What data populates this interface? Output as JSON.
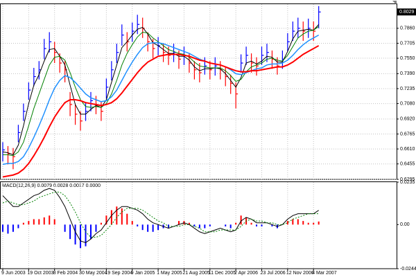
{
  "chart_data": [
    {
      "type": "ohlc",
      "categories": [
        "9 Jun 2003",
        null,
        null,
        null,
        null,
        "19 Oct 2003",
        null,
        null,
        null,
        null,
        "8 Feb 2004",
        null,
        null,
        null,
        null,
        "30 May 2004",
        null,
        null,
        null,
        null,
        "19 Sep 2004",
        null,
        null,
        null,
        null,
        "9 Jan 2005",
        null,
        null,
        null,
        null,
        "1 May 2005",
        null,
        null,
        null,
        null,
        "21 Aug 2005",
        null,
        null,
        null,
        null,
        "11 Dec 2005",
        null,
        null,
        null,
        null,
        "2 Apr 2006",
        null,
        null,
        null,
        null,
        "23 Jul 2006",
        null,
        null,
        null,
        null,
        "12 Nov 2006",
        null,
        null,
        null,
        null,
        "4 Mar 2007",
        null
      ],
      "high": [
        0.668,
        0.664,
        0.662,
        0.686,
        0.708,
        0.73,
        0.745,
        0.752,
        0.775,
        0.782,
        0.772,
        0.76,
        0.752,
        0.72,
        0.707,
        0.7,
        0.709,
        0.72,
        0.716,
        0.71,
        0.734,
        0.752,
        0.77,
        0.79,
        0.782,
        0.792,
        0.8,
        0.797,
        0.782,
        0.775,
        0.777,
        0.77,
        0.767,
        0.77,
        0.763,
        0.767,
        0.76,
        0.752,
        0.75,
        0.756,
        0.752,
        0.756,
        0.752,
        0.746,
        0.738,
        0.73,
        0.759,
        0.767,
        0.76,
        0.756,
        0.767,
        0.77,
        0.763,
        0.756,
        0.763,
        0.781,
        0.793,
        0.797,
        0.793,
        0.796,
        0.793,
        0.809
      ],
      "low": [
        0.648,
        0.645,
        0.64,
        0.668,
        0.69,
        0.712,
        0.726,
        0.733,
        0.754,
        0.761,
        0.75,
        0.74,
        0.73,
        0.695,
        0.686,
        0.68,
        0.69,
        0.7,
        0.697,
        0.69,
        0.713,
        0.732,
        0.75,
        0.768,
        0.762,
        0.772,
        0.78,
        0.776,
        0.762,
        0.755,
        0.758,
        0.751,
        0.748,
        0.751,
        0.744,
        0.748,
        0.74,
        0.733,
        0.73,
        0.738,
        0.733,
        0.737,
        0.733,
        0.726,
        0.718,
        0.703,
        0.74,
        0.748,
        0.74,
        0.737,
        0.748,
        0.751,
        0.744,
        0.738,
        0.744,
        0.762,
        0.773,
        0.776,
        0.773,
        0.776,
        0.773,
        0.786
      ],
      "close": [
        0.66,
        0.656,
        0.653,
        0.678,
        0.7,
        0.722,
        0.736,
        0.743,
        0.765,
        0.772,
        0.761,
        0.75,
        0.743,
        0.707,
        0.697,
        0.69,
        0.7,
        0.711,
        0.707,
        0.7,
        0.725,
        0.743,
        0.761,
        0.779,
        0.772,
        0.783,
        0.79,
        0.786,
        0.772,
        0.765,
        0.768,
        0.761,
        0.758,
        0.761,
        0.754,
        0.758,
        0.75,
        0.743,
        0.74,
        0.747,
        0.743,
        0.747,
        0.743,
        0.736,
        0.729,
        0.718,
        0.75,
        0.758,
        0.75,
        0.747,
        0.758,
        0.761,
        0.754,
        0.747,
        0.754,
        0.772,
        0.783,
        0.786,
        0.783,
        0.786,
        0.783,
        0.8029
      ],
      "up_color": "#0000ff",
      "down_color": "#ff0000",
      "series": [
        {
          "color": "#000000",
          "line_width": 1,
          "values": [
            0.658,
            0.657,
            0.655,
            0.665,
            0.685,
            0.708,
            0.727,
            0.738,
            0.752,
            0.764,
            0.765,
            0.757,
            0.748,
            0.727,
            0.707,
            0.697,
            0.697,
            0.702,
            0.706,
            0.704,
            0.712,
            0.73,
            0.748,
            0.766,
            0.772,
            0.779,
            0.785,
            0.787,
            0.78,
            0.771,
            0.768,
            0.764,
            0.76,
            0.76,
            0.757,
            0.757,
            0.753,
            0.746,
            0.742,
            0.744,
            0.744,
            0.745,
            0.744,
            0.739,
            0.732,
            0.725,
            0.735,
            0.75,
            0.752,
            0.749,
            0.752,
            0.757,
            0.756,
            0.751,
            0.751,
            0.762,
            0.775,
            0.783,
            0.784,
            0.785,
            0.784,
            0.79
          ]
        },
        {
          "color": "#008000",
          "line_width": 1,
          "values": [
            0.655,
            0.655,
            0.654,
            0.658,
            0.668,
            0.685,
            0.703,
            0.718,
            0.733,
            0.748,
            0.756,
            0.757,
            0.753,
            0.74,
            0.725,
            0.712,
            0.705,
            0.704,
            0.705,
            0.704,
            0.708,
            0.718,
            0.732,
            0.748,
            0.76,
            0.769,
            0.777,
            0.782,
            0.781,
            0.776,
            0.772,
            0.768,
            0.764,
            0.762,
            0.76,
            0.759,
            0.756,
            0.751,
            0.747,
            0.746,
            0.745,
            0.745,
            0.745,
            0.742,
            0.737,
            0.731,
            0.733,
            0.741,
            0.746,
            0.748,
            0.75,
            0.754,
            0.755,
            0.753,
            0.752,
            0.758,
            0.767,
            0.776,
            0.78,
            0.783,
            0.784,
            0.788
          ]
        },
        {
          "color": "#1e90ff",
          "line_width": 1.5,
          "values": [
            0.645,
            0.646,
            0.646,
            0.648,
            0.653,
            0.662,
            0.673,
            0.685,
            0.698,
            0.712,
            0.724,
            0.732,
            0.737,
            0.735,
            0.73,
            0.724,
            0.718,
            0.714,
            0.712,
            0.71,
            0.711,
            0.715,
            0.722,
            0.732,
            0.742,
            0.751,
            0.759,
            0.766,
            0.77,
            0.771,
            0.771,
            0.77,
            0.768,
            0.766,
            0.764,
            0.762,
            0.76,
            0.757,
            0.754,
            0.752,
            0.75,
            0.749,
            0.748,
            0.746,
            0.743,
            0.739,
            0.738,
            0.74,
            0.742,
            0.744,
            0.745,
            0.748,
            0.749,
            0.749,
            0.75,
            0.753,
            0.758,
            0.764,
            0.769,
            0.773,
            0.776,
            0.779
          ]
        },
        {
          "color": "#ff0000",
          "line_width": 2,
          "values": [
            0.632,
            0.633,
            0.634,
            0.636,
            0.64,
            0.646,
            0.654,
            0.663,
            0.673,
            0.684,
            0.694,
            0.702,
            0.709,
            0.712,
            0.712,
            0.711,
            0.709,
            0.708,
            0.707,
            0.706,
            0.707,
            0.709,
            0.713,
            0.719,
            0.726,
            0.733,
            0.74,
            0.746,
            0.751,
            0.754,
            0.757,
            0.758,
            0.759,
            0.759,
            0.759,
            0.758,
            0.757,
            0.755,
            0.753,
            0.752,
            0.75,
            0.749,
            0.748,
            0.746,
            0.744,
            0.742,
            0.741,
            0.741,
            0.742,
            0.742,
            0.743,
            0.744,
            0.745,
            0.746,
            0.746,
            0.748,
            0.751,
            0.755,
            0.759,
            0.762,
            0.765,
            0.768
          ]
        }
      ],
      "last_price": 0.8029,
      "ylim": [
        0.6295,
        0.811
      ],
      "yticks": [
        {
          "value": 0.786,
          "label": "0.7860"
        },
        0.7705,
        {
          "value": 0.755,
          "label": "0.7550"
        },
        {
          "value": 0.739,
          "label": "0.7390"
        },
        0.7235,
        {
          "value": 0.708,
          "label": "0.7080"
        },
        {
          "value": 0.692,
          "label": "0.6920"
        },
        0.6765,
        {
          "value": 0.661,
          "label": "0.6610"
        },
        0.6455,
        0.6295
      ],
      "grid": true
    },
    {
      "type": "macd",
      "title": "MACD(12,26,9) 0.0079 0.0028 0.0017 0.0000",
      "histogram": {
        "positive_color": "#ff0000",
        "negative_color": "#0000ff",
        "values": [
          -0.004,
          -0.005,
          -0.004,
          -0.002,
          0.001,
          0.002,
          0.003,
          0.003,
          0.004,
          0.005,
          0.003,
          0.0,
          -0.004,
          -0.008,
          -0.011,
          -0.013,
          -0.012,
          -0.008,
          -0.004,
          0.001,
          0.005,
          0.008,
          0.01,
          0.009,
          0.006,
          0.002,
          -0.001,
          -0.003,
          -0.004,
          -0.004,
          -0.003,
          -0.002,
          -0.002,
          0.0,
          0.002,
          0.002,
          0.001,
          -0.001,
          -0.002,
          -0.002,
          -0.001,
          0.0,
          0.0,
          -0.001,
          -0.002,
          0.001,
          0.005,
          0.004,
          0.001,
          -0.001,
          -0.001,
          0.0,
          -0.001,
          -0.002,
          0.0,
          0.002,
          0.003,
          0.003,
          0.002,
          0.001,
          0.001,
          0.0017
        ]
      },
      "series": [
        {
          "color": "#000000",
          "dashed": false,
          "values": [
            0.016,
            0.013,
            0.01,
            0.01,
            0.012,
            0.014,
            0.016,
            0.017,
            0.019,
            0.02,
            0.019,
            0.015,
            0.01,
            0.003,
            -0.004,
            -0.009,
            -0.01,
            -0.008,
            -0.005,
            -0.003,
            0.001,
            0.005,
            0.008,
            0.01,
            0.01,
            0.009,
            0.008,
            0.006,
            0.003,
            0.001,
            0.0,
            -0.001,
            -0.002,
            -0.001,
            0.0,
            0.001,
            0.0,
            -0.002,
            -0.004,
            -0.005,
            -0.004,
            -0.003,
            -0.002,
            -0.003,
            -0.004,
            -0.003,
            0.002,
            0.004,
            0.003,
            0.001,
            0.001,
            0.001,
            0.0,
            -0.001,
            0.0,
            0.003,
            0.005,
            0.006,
            0.006,
            0.006,
            0.006,
            0.0079
          ]
        },
        {
          "color": "#008000",
          "dashed": true,
          "values": [
            0.012,
            0.013,
            0.012,
            0.011,
            0.011,
            0.012,
            0.013,
            0.015,
            0.016,
            0.017,
            0.018,
            0.018,
            0.016,
            0.012,
            0.007,
            0.001,
            -0.004,
            -0.007,
            -0.007,
            -0.006,
            -0.003,
            0.0,
            0.004,
            0.007,
            0.009,
            0.009,
            0.009,
            0.008,
            0.006,
            0.004,
            0.002,
            0.001,
            -0.001,
            -0.001,
            -0.001,
            0.0,
            0.0,
            -0.001,
            -0.002,
            -0.004,
            -0.004,
            -0.004,
            -0.003,
            -0.003,
            -0.003,
            -0.003,
            -0.001,
            0.002,
            0.003,
            0.002,
            0.002,
            0.001,
            0.001,
            0.0,
            0.0,
            0.001,
            0.003,
            0.004,
            0.005,
            0.006,
            0.006,
            0.006
          ]
        }
      ],
      "ylim": [
        -0.0244,
        0.0235
      ],
      "yticks": [
        0.0235,
        {
          "value": 0,
          "label": "0.00"
        },
        -0.0244
      ],
      "grid": true
    }
  ]
}
